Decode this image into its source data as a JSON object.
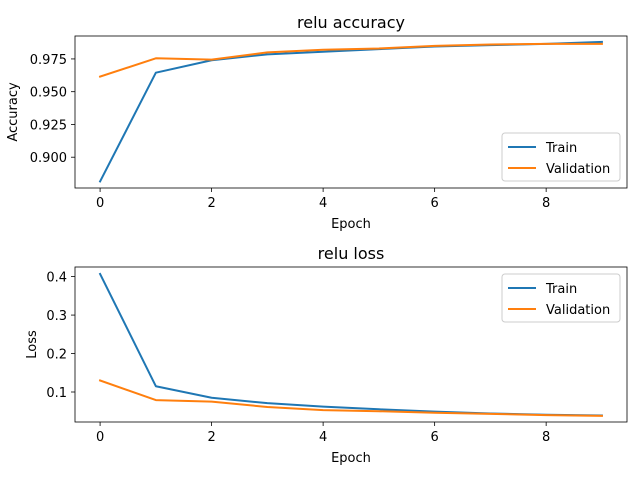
{
  "chart_data": [
    {
      "type": "line",
      "title": "relu accuracy",
      "xlabel": "Epoch",
      "ylabel": "Accuracy",
      "x": [
        0,
        1,
        2,
        3,
        4,
        5,
        6,
        7,
        8,
        9
      ],
      "xlim": [
        -0.45,
        9.45
      ],
      "ylim": [
        0.8765,
        0.9925
      ],
      "xticks": [
        0,
        2,
        4,
        6,
        8
      ],
      "yticks": [
        0.9,
        0.925,
        0.95,
        0.975
      ],
      "ytick_labels": [
        "0.900",
        "0.925",
        "0.950",
        "0.975"
      ],
      "legend": "lower-right",
      "grid": false,
      "series": [
        {
          "name": "Train",
          "color": "#1f77b4",
          "values": [
            0.8815,
            0.9645,
            0.974,
            0.9785,
            0.9805,
            0.9825,
            0.9845,
            0.9855,
            0.9865,
            0.988
          ]
        },
        {
          "name": "Validation",
          "color": "#ff7f0e",
          "values": [
            0.9615,
            0.9755,
            0.9745,
            0.98,
            0.982,
            0.983,
            0.985,
            0.986,
            0.9865,
            0.9865
          ]
        }
      ]
    },
    {
      "type": "line",
      "title": "relu loss",
      "xlabel": "Epoch",
      "ylabel": "Loss",
      "x": [
        0,
        1,
        2,
        3,
        4,
        5,
        6,
        7,
        8,
        9
      ],
      "xlim": [
        -0.45,
        9.45
      ],
      "ylim": [
        0.022,
        0.425
      ],
      "xticks": [
        0,
        2,
        4,
        6,
        8
      ],
      "yticks": [
        0.1,
        0.2,
        0.3,
        0.4
      ],
      "ytick_labels": [
        "0.1",
        "0.2",
        "0.3",
        "0.4"
      ],
      "legend": "upper-right",
      "grid": false,
      "series": [
        {
          "name": "Train",
          "color": "#1f77b4",
          "values": [
            0.407,
            0.115,
            0.085,
            0.071,
            0.062,
            0.055,
            0.049,
            0.044,
            0.041,
            0.039
          ]
        },
        {
          "name": "Validation",
          "color": "#ff7f0e",
          "values": [
            0.13,
            0.079,
            0.075,
            0.061,
            0.053,
            0.05,
            0.046,
            0.043,
            0.04,
            0.038
          ]
        }
      ]
    }
  ]
}
